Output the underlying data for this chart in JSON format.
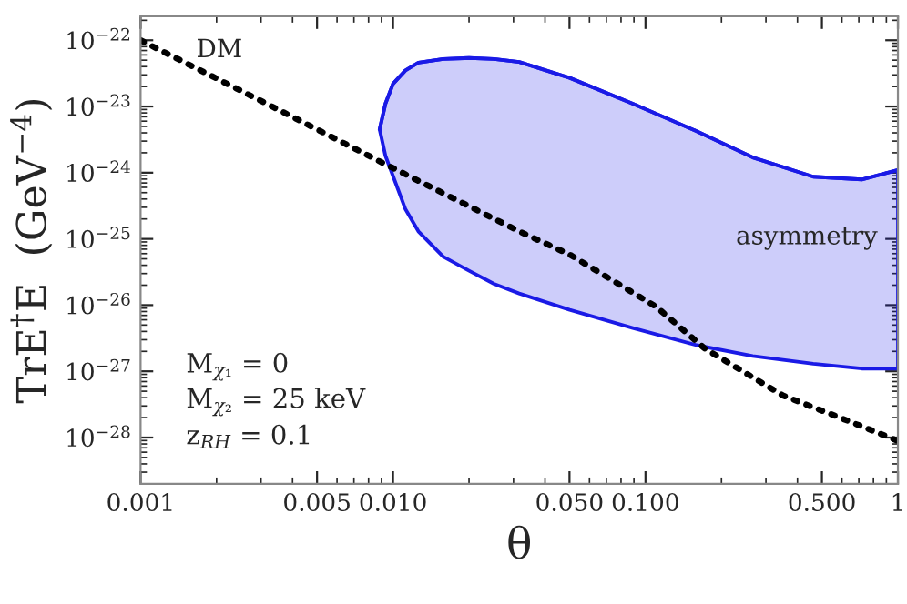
{
  "chart_data": {
    "type": "line",
    "xlabel": "θ",
    "ylabel": "TrE$^{†}$E  (GeV$^{−4}$)",
    "log": "xy",
    "grid": false,
    "legend": false,
    "xlim": [
      0.001,
      1
    ],
    "ylim": [
      2e-29,
      2.3e-22
    ],
    "xticks": [
      0.001,
      0.005,
      {
        "value": 0.01,
        "label": "0.010"
      },
      {
        "value": 0.05,
        "label": "0.050"
      },
      {
        "value": 0.1,
        "label": "0.100"
      },
      {
        "value": 0.5,
        "label": "0.500"
      },
      1
    ],
    "yticks": [
      {
        "value": 1e-22,
        "label": "10$^{−22}$"
      },
      {
        "value": 1e-23,
        "label": "10$^{−23}$"
      },
      {
        "value": 1e-24,
        "label": "10$^{−24}$"
      },
      {
        "value": 1e-25,
        "label": "10$^{−25}$"
      },
      {
        "value": 1e-26,
        "label": "10$^{−26}$"
      },
      {
        "value": 1e-27,
        "label": "10$^{−27}$"
      },
      {
        "value": 1e-28,
        "label": "10$^{−28}$"
      }
    ],
    "series": [
      {
        "name": "asymmetry",
        "type": "line",
        "color": "#1a1ae6",
        "x": [
          0.00885,
          0.00933,
          0.01,
          0.0112,
          0.0126,
          0.0158,
          0.02,
          0.0251,
          0.0316,
          0.0501,
          0.0891,
          0.158,
          0.266,
          0.462,
          0.719,
          1
        ],
        "values": [
          4.5e-24,
          1.1e-23,
          2.2e-23,
          3.5e-23,
          4.6e-23,
          5.2e-23,
          5.4e-23,
          5.2e-23,
          4.7e-23,
          2.7e-23,
          1.1e-23,
          4.3e-24,
          1.7e-24,
          8.7e-25,
          7.9e-25,
          1.1e-24
        ],
        "upper": [
          4.5e-24,
          1.1e-23,
          2.2e-23,
          3.5e-23,
          4.6e-23,
          5.2e-23,
          5.4e-23,
          5.2e-23,
          4.7e-23,
          2.7e-23,
          1.1e-23,
          4.3e-24,
          1.7e-24,
          8.7e-25,
          7.9e-25,
          1.1e-24
        ],
        "lower": [
          4.5e-24,
          1.8e-24,
          8.9e-25,
          2.8e-25,
          1.3e-25,
          5.4e-26,
          3.3e-26,
          2.1e-26,
          1.5e-26,
          8.5e-27,
          4.5e-27,
          2.5e-27,
          1.7e-27,
          1.3e-27,
          1.1e-27,
          1.1e-27
        ]
      },
      {
        "name": "DM",
        "color": "#000000",
        "line_style": "dotted",
        "x": [
          0.001,
          0.00316,
          0.00912,
          0.0316,
          0.0501,
          0.11,
          0.172,
          0.351,
          0.631,
          1
        ],
        "values": [
          1e-22,
          1.1e-23,
          1.4e-24,
          1.3e-25,
          5.8e-26,
          9.5e-27,
          2.2e-27,
          4.3e-28,
          1.8e-28,
          8.9e-29
        ]
      }
    ],
    "annotations": [
      "M$_{χ₁}$ = 0",
      "M$_{χ₂}$ = 25 keV",
      "z$_{RH}$ = 0.1"
    ]
  }
}
